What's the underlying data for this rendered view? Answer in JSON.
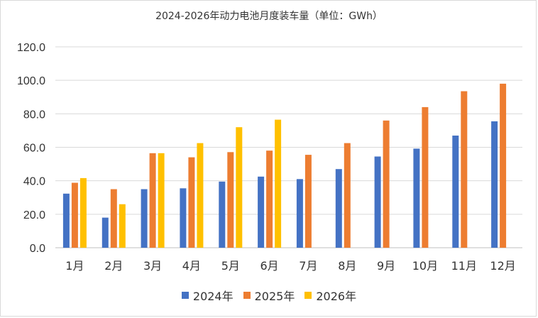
{
  "chart_data": {
    "type": "bar",
    "title": "2024-2026年动力电池月度装车量（单位：GWh）",
    "categories": [
      "1月",
      "2月",
      "3月",
      "4月",
      "5月",
      "6月",
      "7月",
      "8月",
      "9月",
      "10月",
      "11月",
      "12月"
    ],
    "series": [
      {
        "name": "2024年",
        "color": "#4472c4",
        "values": [
          32.3,
          18.0,
          35.0,
          35.5,
          39.5,
          42.5,
          41.0,
          47.0,
          54.5,
          59.2,
          67.0,
          75.5
        ]
      },
      {
        "name": "2025年",
        "color": "#ed7d31",
        "values": [
          38.8,
          35.0,
          56.5,
          54.0,
          57.1,
          58.0,
          55.5,
          62.5,
          76.0,
          84.0,
          93.5,
          98.0
        ]
      },
      {
        "name": "2026年",
        "color": "#ffc000",
        "values": [
          41.6,
          26.0,
          56.5,
          62.5,
          72.0,
          76.5,
          null,
          null,
          null,
          null,
          null,
          null
        ]
      }
    ],
    "ylim": [
      0,
      120
    ],
    "yticks": [
      "0.0",
      "20.0",
      "40.0",
      "60.0",
      "80.0",
      "100.0",
      "120.0"
    ],
    "grid": true,
    "legend": "bottom"
  }
}
